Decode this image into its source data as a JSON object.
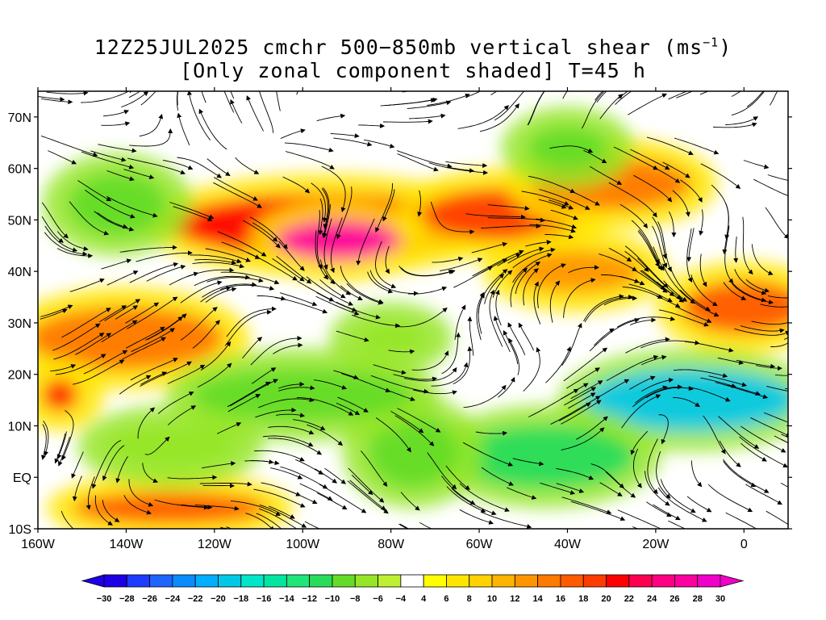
{
  "title": {
    "line1_pre": "12Z25JUL2025 cmchr 500−850mb vertical shear (ms",
    "line1_sup": "−1",
    "line1_post": ")",
    "line2": "[Only zonal component shaded] T=45 h"
  },
  "map": {
    "lon_range": [
      -160,
      10
    ],
    "lat_range": [
      -10,
      75
    ],
    "lat_ticks": [
      {
        "value": 70,
        "label": "70N"
      },
      {
        "value": 60,
        "label": "60N"
      },
      {
        "value": 50,
        "label": "50N"
      },
      {
        "value": 40,
        "label": "40N"
      },
      {
        "value": 30,
        "label": "30N"
      },
      {
        "value": 20,
        "label": "20N"
      },
      {
        "value": 10,
        "label": "10N"
      },
      {
        "value": 0,
        "label": "EQ"
      },
      {
        "value": -10,
        "label": "10S"
      }
    ],
    "lon_ticks": [
      {
        "value": -160,
        "label": "160W"
      },
      {
        "value": -140,
        "label": "140W"
      },
      {
        "value": -120,
        "label": "120W"
      },
      {
        "value": -100,
        "label": "100W"
      },
      {
        "value": -80,
        "label": "80W"
      },
      {
        "value": -60,
        "label": "60W"
      },
      {
        "value": -40,
        "label": "40W"
      },
      {
        "value": -20,
        "label": "20W"
      },
      {
        "value": 0,
        "label": "0"
      }
    ],
    "shading_regions": [
      {
        "lon": -95,
        "lat": 49,
        "rlon": 35,
        "rlat": 6,
        "value": 20
      },
      {
        "lon": -92,
        "lat": 46,
        "rlon": 14,
        "rlat": 4,
        "value": 26
      },
      {
        "lon": -55,
        "lat": 51,
        "rlon": 18,
        "rlat": 5,
        "value": 18
      },
      {
        "lon": -30,
        "lat": 57,
        "rlon": 18,
        "rlat": 5,
        "value": 15
      },
      {
        "lon": -140,
        "lat": 27,
        "rlon": 22,
        "rlat": 6,
        "value": 15
      },
      {
        "lon": -155,
        "lat": 16,
        "rlon": 4,
        "rlat": 3,
        "value": 20
      },
      {
        "lon": -130,
        "lat": -6,
        "rlon": 22,
        "rlat": 3,
        "value": 16
      },
      {
        "lon": 0,
        "lat": 33,
        "rlon": 14,
        "rlat": 5,
        "value": 16
      },
      {
        "lon": -38,
        "lat": 40,
        "rlon": 15,
        "rlat": 4,
        "value": 12
      },
      {
        "lon": -142,
        "lat": 53,
        "rlon": 11,
        "rlat": 6,
        "value": -10
      },
      {
        "lon": -40,
        "lat": 64,
        "rlon": 9,
        "rlat": 4,
        "value": -10
      },
      {
        "lon": -12,
        "lat": 15,
        "rlon": 24,
        "rlat": 6,
        "value": -20
      },
      {
        "lon": -45,
        "lat": 4,
        "rlon": 20,
        "rlat": 6,
        "value": -12
      },
      {
        "lon": -75,
        "lat": 5,
        "rlon": 10,
        "rlat": 7,
        "value": -10
      },
      {
        "lon": -100,
        "lat": 16,
        "rlon": 25,
        "rlat": 5,
        "value": -10
      },
      {
        "lon": -80,
        "lat": 27,
        "rlon": 8,
        "rlat": 3,
        "value": -8
      },
      {
        "lon": -130,
        "lat": 6,
        "rlon": 15,
        "rlat": 4,
        "value": -8
      }
    ]
  },
  "colorbar": {
    "labels": [
      "−30",
      "−28",
      "−26",
      "−24",
      "−22",
      "−20",
      "−18",
      "−16",
      "−14",
      "−12",
      "−10",
      "−8",
      "−6",
      "−4",
      "4",
      "6",
      "8",
      "10",
      "12",
      "14",
      "16",
      "18",
      "20",
      "22",
      "24",
      "26",
      "28",
      "30"
    ],
    "colors": [
      "#1e00e6",
      "#1e3cff",
      "#1e64ff",
      "#0a8cff",
      "#00afff",
      "#00c8e6",
      "#00e6c8",
      "#00e6a0",
      "#1ee678",
      "#28dc5a",
      "#64dc28",
      "#96e628",
      "#bef032",
      "#ffffff",
      "#ffff00",
      "#ffe600",
      "#ffd200",
      "#ffb400",
      "#ff9600",
      "#ff7800",
      "#ff5a00",
      "#ff3c00",
      "#ff0000",
      "#ff0050",
      "#ff0082",
      "#ff00a0",
      "#f000c8"
    ],
    "under_color": "#1e00e6",
    "over_color": "#f000c8"
  }
}
